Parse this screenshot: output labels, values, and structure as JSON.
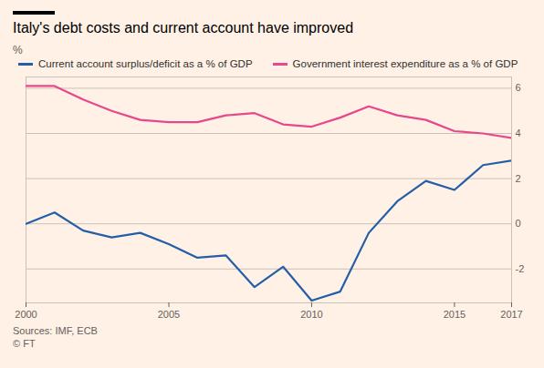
{
  "chart_data": {
    "type": "line",
    "title": "Italy's debt costs and current account have improved",
    "y_label": "%",
    "x": [
      2000,
      2001,
      2002,
      2003,
      2004,
      2005,
      2006,
      2007,
      2008,
      2009,
      2010,
      2011,
      2012,
      2013,
      2014,
      2015,
      2016,
      2017
    ],
    "series": [
      {
        "name": "Current account surplus/deficit as a % of GDP",
        "color": "#245ea8",
        "values": [
          0.0,
          0.5,
          -0.3,
          -0.6,
          -0.4,
          -0.9,
          -1.5,
          -1.4,
          -2.8,
          -1.9,
          -3.4,
          -3.0,
          -0.4,
          1.0,
          1.9,
          1.5,
          2.6,
          2.8
        ]
      },
      {
        "name": "Government interest expenditure as a % of GDP",
        "color": "#e7478b",
        "values": [
          6.1,
          6.1,
          5.5,
          5.0,
          4.6,
          4.5,
          4.5,
          4.8,
          4.9,
          4.4,
          4.3,
          4.7,
          5.2,
          4.8,
          4.6,
          4.1,
          4.0,
          3.8
        ]
      }
    ],
    "xlim": [
      2000,
      2017
    ],
    "xticks": [
      2000,
      2005,
      2010,
      2015,
      2017
    ],
    "ylim": [
      -3.5,
      6.5
    ],
    "yticks": [
      -2,
      0,
      2,
      4,
      6
    ],
    "grid": true,
    "sources": [
      "Sources: IMF, ECB",
      "© FT"
    ]
  }
}
